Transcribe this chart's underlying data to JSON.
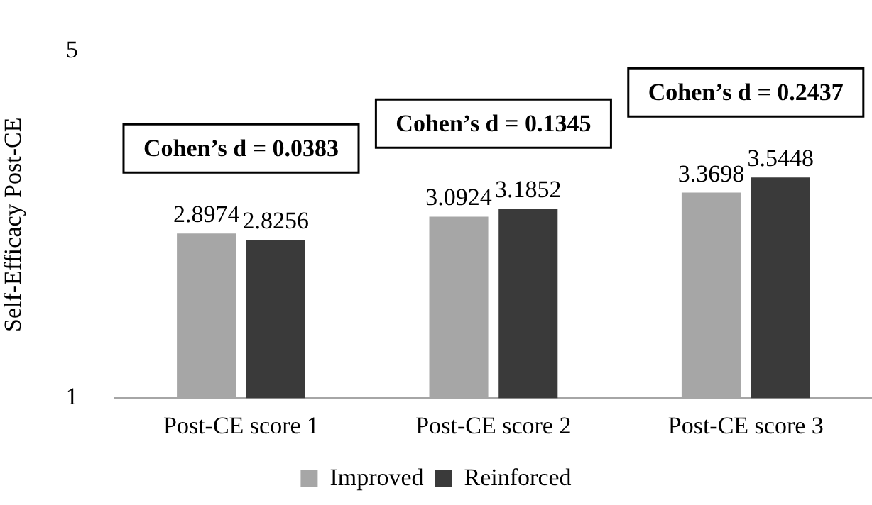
{
  "chart_data": {
    "type": "bar",
    "ylabel": "Self-Efficacy Post-CE",
    "categories": [
      "Post-CE score 1",
      "Post-CE score 2",
      "Post-CE score 3"
    ],
    "series": [
      {
        "name": "Improved",
        "color": "#a6a6a6",
        "values": [
          2.8974,
          3.0924,
          3.3698
        ]
      },
      {
        "name": "Reinforced",
        "color": "#3a3a3a",
        "values": [
          2.8256,
          3.1852,
          3.5448
        ]
      }
    ],
    "ylim": [
      1,
      5
    ],
    "yticks": [
      1,
      5
    ],
    "grid": false,
    "legend": "bottom",
    "data_labels": true,
    "annotations": [
      "Cohen’s d = 0.0383",
      "Cohen’s d = 0.1345",
      "Cohen’s d = 0.2437"
    ]
  }
}
